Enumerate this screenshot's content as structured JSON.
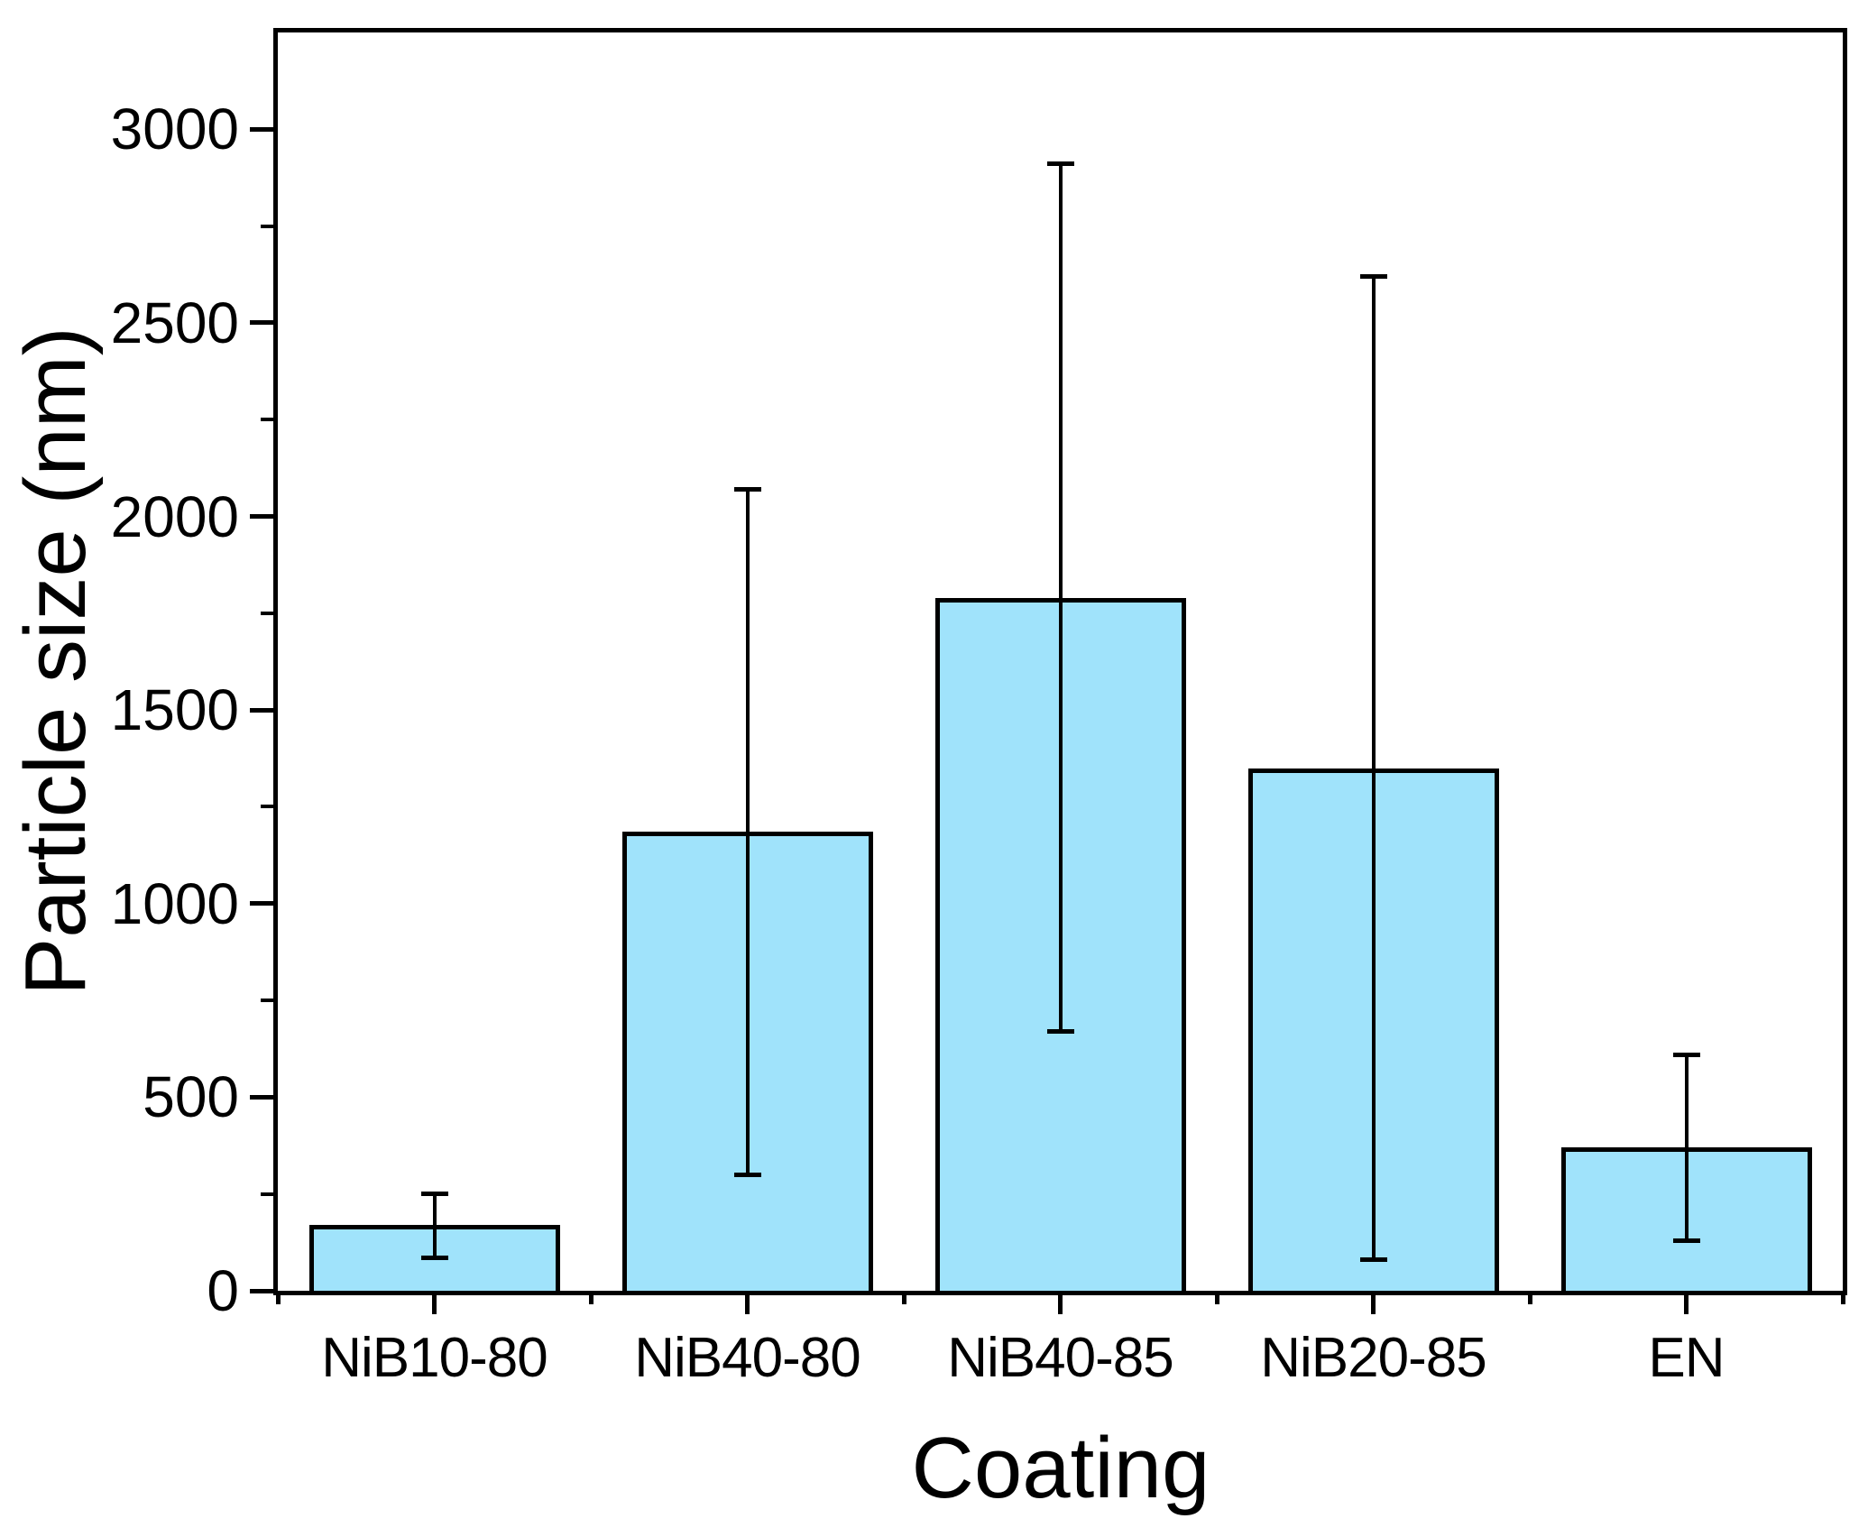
{
  "chart_data": {
    "type": "bar",
    "title": "",
    "xlabel": "Coating",
    "ylabel": "Particle size (nm)",
    "categories": [
      "NiB10-80",
      "NiB40-80",
      "NiB40-85",
      "NiB20-85",
      "EN"
    ],
    "values": [
      170,
      1185,
      1790,
      1350,
      370
    ],
    "error_low": [
      85,
      300,
      670,
      80,
      130
    ],
    "error_high": [
      250,
      2070,
      2910,
      2620,
      610
    ],
    "ylim": [
      0,
      3250
    ],
    "y_major_ticks": [
      0,
      500,
      1000,
      1500,
      2000,
      2500,
      3000
    ],
    "y_minor_ticks": [
      250,
      750,
      1250,
      1750,
      2250,
      2750
    ],
    "y_tick_labels": [
      "0",
      "500",
      "1000",
      "1500",
      "2000",
      "2500",
      "3000"
    ],
    "grid": false,
    "legend": null,
    "colors": {
      "bar_fill": "#A0E3FB",
      "bar_border": "#000000",
      "axis": "#000000",
      "background": "#FFFFFF",
      "text": "#000000"
    }
  }
}
